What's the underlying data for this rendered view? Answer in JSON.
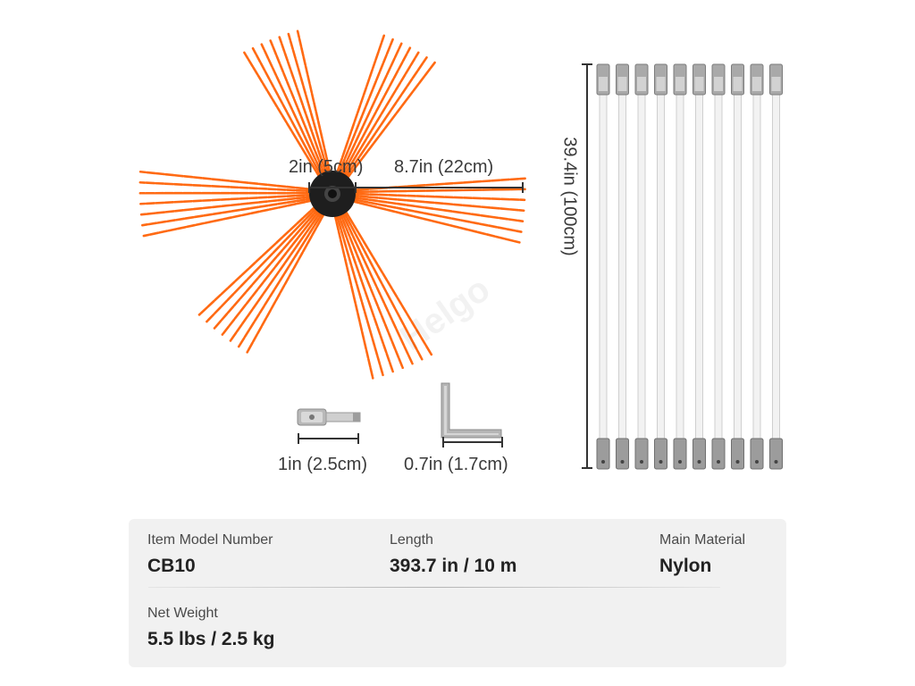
{
  "dimensions": {
    "hub_diameter": "2in (5cm)",
    "bristle_length": "8.7in (22cm)",
    "rod_length": "39.4in (100cm)",
    "adapter_length": "1in (2.5cm)",
    "key_length": "0.7in (1.7cm)"
  },
  "watermark": "Helgo",
  "specs": {
    "model_label": "Item Model Number",
    "model_value": "CB10",
    "length_label": "Length",
    "length_value": "393.7 in / 10 m",
    "material_label": "Main Material",
    "material_value": "Nylon",
    "weight_label": "Net Weight",
    "weight_value": "5.5 lbs / 2.5 kg"
  },
  "colors": {
    "bristle": "#ff6a13",
    "hub": "#1e1e1e",
    "rod": "#f2f2f2",
    "card_background": "#f1f1f1"
  },
  "rod_count": 10
}
